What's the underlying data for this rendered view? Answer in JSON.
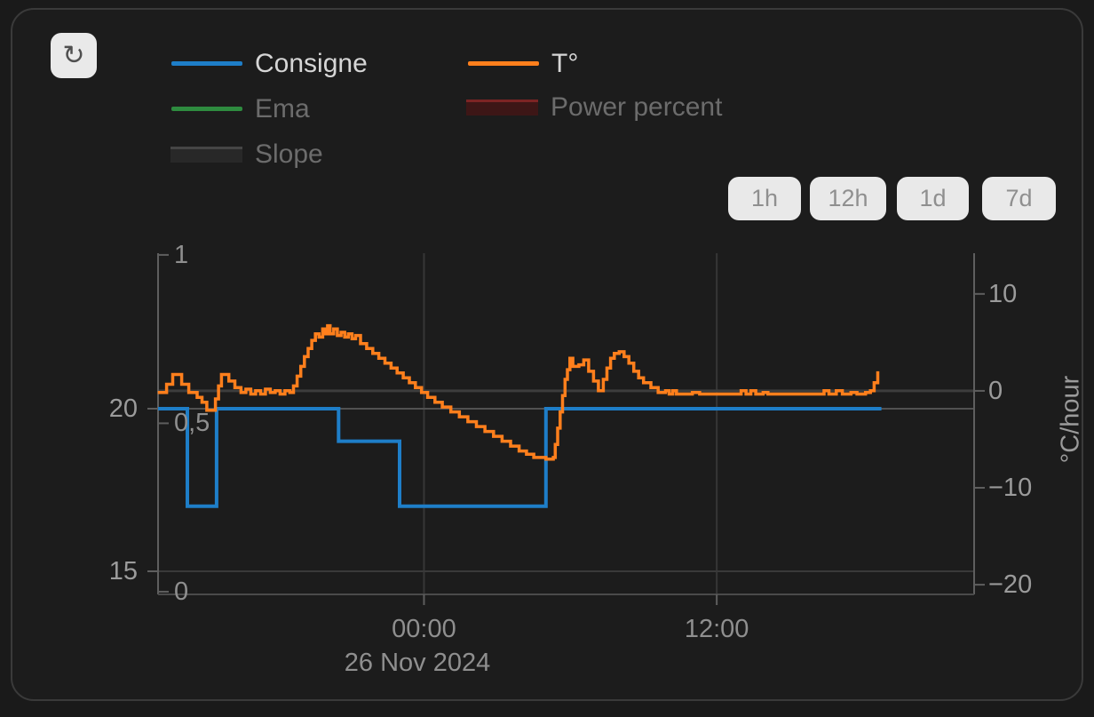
{
  "toolbar": {
    "refresh_icon": "↻"
  },
  "legend": {
    "items": [
      {
        "label": "Consigne",
        "swatch": "line",
        "color": "#1e7ec8",
        "active": true
      },
      {
        "label": "T°",
        "swatch": "line",
        "color": "#ff7f1c",
        "active": true
      },
      {
        "label": "Ema",
        "swatch": "line",
        "color": "#2e8b3f",
        "active": false
      },
      {
        "label": "Power percent",
        "swatch": "box",
        "color": "#3d1616",
        "edge_color": "#7c2424",
        "active": false
      },
      {
        "label": "Slope",
        "swatch": "box",
        "color": "#282828",
        "edge_color": "#454545",
        "active": false
      }
    ]
  },
  "range_buttons": [
    "1h",
    "12h",
    "1d",
    "7d"
  ],
  "chart_data": {
    "type": "line",
    "title": "",
    "x_axis": {
      "unit": "hours relative to 26 Nov 2024 00:00",
      "tick_hours": [
        0,
        12
      ],
      "tick_labels": [
        "00:00",
        "12:00"
      ],
      "date_label": "26 Nov 2024",
      "xlim_hours": [
        -10.9,
        22.55
      ]
    },
    "y_axis_temperature": {
      "side": "left",
      "tick_values": [
        20,
        15
      ],
      "tick_labels": [
        "20",
        "15"
      ],
      "ylim": [
        14.29,
        24.78
      ]
    },
    "y_axis_fraction": {
      "side": "left-inner",
      "tick_values": [
        1,
        0.5,
        0
      ],
      "tick_labels": [
        "1",
        "0,5",
        "0"
      ],
      "ylim": [
        -0.008,
        1.005
      ]
    },
    "y_axis_rate": {
      "side": "right",
      "title": "°C/hour",
      "tick_values": [
        10,
        0,
        -10,
        -20
      ],
      "tick_labels": [
        "10",
        "0",
        "−10",
        "−20"
      ],
      "ylim": [
        -21.0,
        14.2
      ]
    },
    "grid": {
      "vertical_at_hours": [
        0,
        12
      ],
      "horizontal_at_temp": [
        20,
        15
      ],
      "horizontal_at_rate": [
        0
      ]
    },
    "series": [
      {
        "name": "Consigne",
        "color": "#1e7ec8",
        "axis": "temperature",
        "step": true,
        "visible": true,
        "width": 4,
        "points": [
          [
            -10.9,
            20
          ],
          [
            -9.7,
            17
          ],
          [
            -8.5,
            20
          ],
          [
            -3.5,
            19
          ],
          [
            -1.0,
            17
          ],
          [
            5.0,
            20
          ],
          [
            18.75,
            20
          ]
        ]
      },
      {
        "name": "T°",
        "color": "#ff7f1c",
        "axis": "temperature",
        "step": true,
        "visible": true,
        "width": 3.5,
        "points": [
          [
            -10.91,
            20.5
          ],
          [
            -10.55,
            20.75
          ],
          [
            -10.3,
            21.05
          ],
          [
            -9.93,
            20.75
          ],
          [
            -9.64,
            20.5
          ],
          [
            -9.3,
            20.35
          ],
          [
            -9.1,
            20.2
          ],
          [
            -8.9,
            19.95
          ],
          [
            -8.55,
            20.3
          ],
          [
            -8.42,
            20.7
          ],
          [
            -8.3,
            21.05
          ],
          [
            -8.0,
            20.85
          ],
          [
            -7.75,
            20.65
          ],
          [
            -7.5,
            20.5
          ],
          [
            -7.3,
            20.6
          ],
          [
            -7.1,
            20.45
          ],
          [
            -6.9,
            20.55
          ],
          [
            -6.7,
            20.45
          ],
          [
            -6.5,
            20.6
          ],
          [
            -6.3,
            20.5
          ],
          [
            -6.1,
            20.55
          ],
          [
            -5.9,
            20.45
          ],
          [
            -5.7,
            20.55
          ],
          [
            -5.5,
            20.5
          ],
          [
            -5.35,
            20.7
          ],
          [
            -5.2,
            21.0
          ],
          [
            -5.05,
            21.3
          ],
          [
            -4.9,
            21.6
          ],
          [
            -4.75,
            21.85
          ],
          [
            -4.6,
            22.1
          ],
          [
            -4.45,
            22.3
          ],
          [
            -4.3,
            22.2
          ],
          [
            -4.15,
            22.45
          ],
          [
            -4.05,
            22.3
          ],
          [
            -3.95,
            22.55
          ],
          [
            -3.85,
            22.3
          ],
          [
            -3.7,
            22.45
          ],
          [
            -3.55,
            22.25
          ],
          [
            -3.4,
            22.35
          ],
          [
            -3.25,
            22.2
          ],
          [
            -3.1,
            22.3
          ],
          [
            -2.95,
            22.15
          ],
          [
            -2.8,
            22.25
          ],
          [
            -2.6,
            22.0
          ],
          [
            -2.35,
            21.85
          ],
          [
            -2.1,
            21.7
          ],
          [
            -1.85,
            21.55
          ],
          [
            -1.6,
            21.4
          ],
          [
            -1.35,
            21.25
          ],
          [
            -1.1,
            21.1
          ],
          [
            -0.85,
            20.95
          ],
          [
            -0.6,
            20.8
          ],
          [
            -0.35,
            20.65
          ],
          [
            -0.1,
            20.5
          ],
          [
            0.15,
            20.35
          ],
          [
            0.45,
            20.2
          ],
          [
            0.75,
            20.05
          ],
          [
            1.1,
            19.9
          ],
          [
            1.45,
            19.75
          ],
          [
            1.8,
            19.6
          ],
          [
            2.15,
            19.45
          ],
          [
            2.5,
            19.3
          ],
          [
            2.85,
            19.15
          ],
          [
            3.2,
            19.0
          ],
          [
            3.55,
            18.85
          ],
          [
            3.9,
            18.7
          ],
          [
            4.2,
            18.6
          ],
          [
            4.5,
            18.5
          ],
          [
            5.0,
            18.45
          ],
          [
            5.3,
            18.5
          ],
          [
            5.38,
            18.9
          ],
          [
            5.48,
            19.4
          ],
          [
            5.58,
            19.9
          ],
          [
            5.68,
            20.4
          ],
          [
            5.78,
            20.9
          ],
          [
            5.88,
            21.2
          ],
          [
            5.98,
            21.55
          ],
          [
            6.1,
            21.3
          ],
          [
            6.35,
            21.35
          ],
          [
            6.55,
            21.5
          ],
          [
            6.75,
            21.15
          ],
          [
            6.95,
            20.85
          ],
          [
            7.15,
            20.55
          ],
          [
            7.35,
            20.9
          ],
          [
            7.5,
            21.25
          ],
          [
            7.65,
            21.55
          ],
          [
            7.8,
            21.7
          ],
          [
            8.0,
            21.75
          ],
          [
            8.2,
            21.6
          ],
          [
            8.4,
            21.4
          ],
          [
            8.6,
            21.15
          ],
          [
            8.8,
            20.95
          ],
          [
            9.0,
            20.8
          ],
          [
            9.3,
            20.65
          ],
          [
            9.6,
            20.5
          ],
          [
            9.9,
            20.55
          ],
          [
            10.05,
            20.45
          ],
          [
            10.2,
            20.55
          ],
          [
            10.35,
            20.45
          ],
          [
            11.0,
            20.5
          ],
          [
            11.3,
            20.45
          ],
          [
            13.0,
            20.55
          ],
          [
            13.2,
            20.45
          ],
          [
            13.4,
            20.55
          ],
          [
            13.6,
            20.45
          ],
          [
            13.9,
            20.5
          ],
          [
            14.1,
            20.45
          ],
          [
            15.2,
            20.45
          ],
          [
            16.4,
            20.55
          ],
          [
            16.6,
            20.45
          ],
          [
            16.9,
            20.55
          ],
          [
            17.15,
            20.45
          ],
          [
            17.5,
            20.5
          ],
          [
            17.75,
            20.45
          ],
          [
            18.1,
            20.5
          ],
          [
            18.3,
            20.55
          ],
          [
            18.45,
            20.8
          ],
          [
            18.6,
            21.15
          ]
        ]
      },
      {
        "name": "Ema",
        "color": "#2e8b3f",
        "visible": false,
        "points": []
      },
      {
        "name": "Power percent",
        "color": "#7c2424",
        "visible": false,
        "points": []
      },
      {
        "name": "Slope",
        "color": "#454545",
        "visible": false,
        "points": []
      }
    ]
  }
}
